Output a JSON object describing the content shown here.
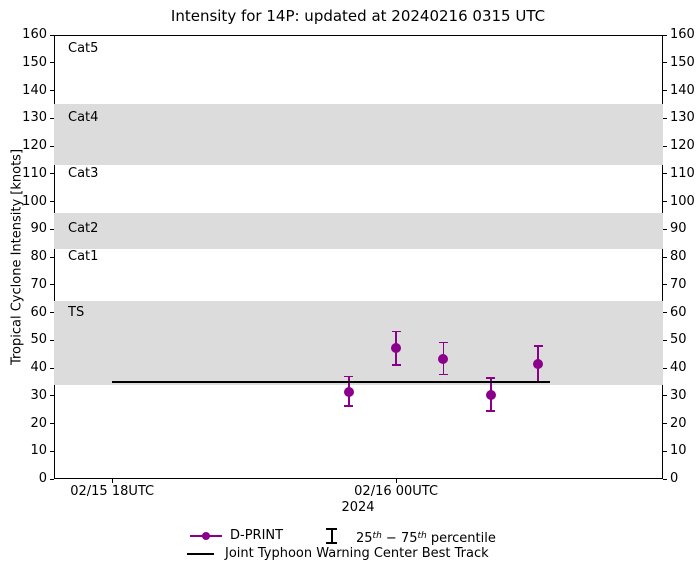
{
  "chart_data": {
    "type": "scatter",
    "title": "Intensity for 14P: updated at 20240216 0315 UTC",
    "xlabel": "2024",
    "ylabel": "Tropical Cyclone Intensity [knots]",
    "ylim": [
      0,
      160
    ],
    "ytick_step": 10,
    "x_unit_hours_since": "2024-02-15 18:00 UTC",
    "xlim": [
      -1.23,
      11.64
    ],
    "xticks": [
      {
        "hours": 0,
        "label": "02/15 18UTC"
      },
      {
        "hours": 6,
        "label": "02/16 00UTC"
      }
    ],
    "band_color": "#dcdcdc",
    "category_bands": [
      {
        "name": "TS",
        "from": 34,
        "to": 64,
        "shaded": true,
        "label_at": 60
      },
      {
        "name": "Cat1",
        "from": 64,
        "to": 83,
        "shaded": false,
        "label_at": 80
      },
      {
        "name": "Cat2",
        "from": 83,
        "to": 96,
        "shaded": true,
        "label_at": 90
      },
      {
        "name": "Cat3",
        "from": 96,
        "to": 113,
        "shaded": false,
        "label_at": 110
      },
      {
        "name": "Cat4",
        "from": 113,
        "to": 135,
        "shaded": true,
        "label_at": 130
      },
      {
        "name": "Cat5",
        "from": 135,
        "to": 160,
        "shaded": false,
        "label_at": 155
      }
    ],
    "series": [
      {
        "name": "D-PRINT",
        "type": "scatter-errorbar",
        "color": "#8b008b",
        "points": [
          {
            "hours": 5,
            "time": "02/15 23UTC",
            "value": 31.3,
            "p25": 26.3,
            "p75": 37.0
          },
          {
            "hours": 6,
            "time": "02/16 00UTC",
            "value": 47.1,
            "p25": 41.1,
            "p75": 53.1
          },
          {
            "hours": 7,
            "time": "02/16 01UTC",
            "value": 43.1,
            "p25": 37.7,
            "p75": 49.2
          },
          {
            "hours": 8,
            "time": "02/16 02UTC",
            "value": 30.3,
            "p25": 24.5,
            "p75": 36.5
          },
          {
            "hours": 9,
            "time": "02/16 03UTC",
            "value": 41.3,
            "p25": 35.1,
            "p75": 47.9
          }
        ]
      },
      {
        "name": "Joint Typhoon Warning Center Best Track",
        "type": "line",
        "color": "#000000",
        "value": 35,
        "start_hours": 0,
        "end_hours": 9.25
      }
    ],
    "legend": {
      "position": "below",
      "entries": [
        {
          "label": "D-PRINT"
        },
        {
          "label": "25th − 75th percentile",
          "label_parts": {
            "p1": "25",
            "sup1": "th",
            "p2": " − 75",
            "sup2": "th",
            "p3": " percentile"
          }
        },
        {
          "label": "Joint Typhoon Warning Center Best Track"
        }
      ]
    }
  }
}
